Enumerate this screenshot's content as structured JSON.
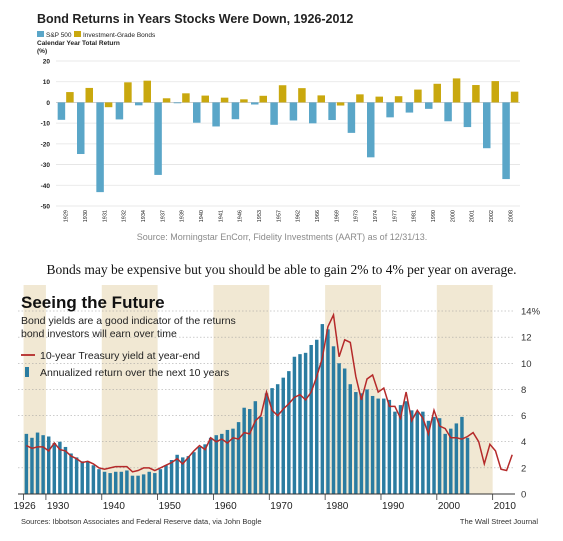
{
  "chart_data": [
    {
      "type": "bar",
      "title": "Bond Returns in Years Stocks Were Down, 1926-2012",
      "ylabel_line1": "Calendar Year Total Return",
      "ylabel_line2": "(%)",
      "source": "Source: Morningstar EnCorr, Fidelity Investments (AART) as of 12/31/13.",
      "ylim": [
        -50,
        20
      ],
      "yticks": [
        20,
        10,
        0,
        -10,
        -20,
        -30,
        -40,
        -50
      ],
      "grid": true,
      "legend_position": "top-left",
      "categories": [
        "1929",
        "1930",
        "1931",
        "1932",
        "1934",
        "1937",
        "1939",
        "1940",
        "1941",
        "1946",
        "1953",
        "1957",
        "1962",
        "1966",
        "1969",
        "1973",
        "1974",
        "1977",
        "1981",
        "1990",
        "2000",
        "2001",
        "2002",
        "2008"
      ],
      "series": [
        {
          "name": "S&P 500",
          "color": "#5aa6c8",
          "values": [
            -8.4,
            -24.9,
            -43.3,
            -8.2,
            -1.4,
            -35.0,
            -0.4,
            -9.8,
            -11.6,
            -8.1,
            -1.0,
            -10.8,
            -8.7,
            -10.1,
            -8.5,
            -14.7,
            -26.5,
            -7.2,
            -4.9,
            -3.1,
            -9.1,
            -11.9,
            -22.1,
            -37.0
          ]
        },
        {
          "name": "Investment-Grade Bonds",
          "color": "#c9a80e",
          "values": [
            5.0,
            7.0,
            -2.3,
            9.7,
            10.5,
            2.0,
            4.4,
            3.3,
            2.3,
            1.5,
            3.2,
            8.3,
            6.9,
            3.4,
            -1.5,
            3.9,
            2.8,
            3.0,
            6.2,
            9.0,
            11.6,
            8.4,
            10.3,
            5.2
          ]
        }
      ]
    },
    {
      "type": "line",
      "title": "Seeing the Future",
      "subtitle_line1": "Bond yields are a good indicator of the returns",
      "subtitle_line2": "bond investors will earn over time",
      "source": "Sources: Ibbotson Associates and Federal Reserve data, via John Bogle",
      "credit": "The Wall Street Journal",
      "ylim": [
        0,
        14
      ],
      "yticks": [
        "0",
        "2",
        "4",
        "6",
        "8",
        "10",
        "12",
        "14%"
      ],
      "xlim": [
        1925,
        2014
      ],
      "xticks": [
        "1926",
        "1930",
        "1940",
        "1950",
        "1960",
        "1970",
        "1980",
        "1990",
        "2000",
        "2010"
      ],
      "legend_position": "top-left",
      "series": [
        {
          "name": "10-year Treasury yield at year-end",
          "color": "#b52a2a",
          "x_start": 1926,
          "values": [
            3.7,
            3.5,
            3.6,
            3.6,
            3.3,
            3.9,
            3.4,
            3.3,
            2.9,
            2.7,
            2.4,
            2.5,
            2.3,
            2.0,
            1.9,
            2.0,
            2.1,
            2.1,
            2.1,
            1.7,
            1.8,
            2.0,
            2.0,
            1.8,
            2.0,
            2.2,
            2.4,
            2.7,
            2.3,
            2.8,
            3.3,
            3.7,
            3.4,
            4.3,
            4.0,
            4.2,
            3.9,
            4.3,
            4.2,
            4.7,
            4.6,
            5.6,
            6.0,
            7.8,
            6.4,
            6.0,
            6.5,
            6.9,
            7.4,
            7.6,
            7.2,
            7.8,
            9.0,
            10.4,
            12.8,
            13.7,
            10.5,
            11.8,
            11.6,
            9.0,
            7.2,
            8.8,
            9.1,
            7.8,
            8.1,
            6.7,
            6.7,
            5.8,
            7.8,
            5.6,
            6.4,
            5.8,
            4.6,
            6.4,
            5.2,
            5.0,
            4.3,
            4.3,
            4.2,
            4.4,
            4.7,
            4.0,
            2.3,
            3.8,
            3.3,
            1.9,
            1.8,
            3.0
          ]
        },
        {
          "name": "Annualized return over the next 10 years",
          "color": "#2a7ca1",
          "x_start": 1926,
          "values": [
            4.6,
            4.3,
            4.7,
            4.5,
            4.4,
            3.9,
            4.0,
            3.6,
            3.1,
            2.8,
            2.5,
            2.5,
            2.2,
            1.9,
            1.7,
            1.6,
            1.7,
            1.7,
            1.8,
            1.4,
            1.4,
            1.5,
            1.7,
            1.6,
            1.9,
            2.2,
            2.6,
            3.0,
            2.8,
            2.9,
            3.2,
            3.6,
            3.8,
            4.3,
            4.5,
            4.6,
            4.9,
            5.0,
            5.5,
            6.6,
            6.5,
            7.1,
            5.9,
            7.7,
            8.1,
            8.4,
            8.9,
            9.4,
            10.5,
            10.7,
            10.8,
            11.4,
            11.8,
            13.0,
            12.6,
            11.3,
            10.0,
            9.6,
            8.4,
            7.8,
            7.7,
            8.0,
            7.5,
            7.3,
            7.3,
            7.2,
            6.3,
            6.8,
            7.1,
            6.4,
            6.3,
            6.3,
            5.6,
            5.9,
            5.8,
            4.6,
            5.0,
            5.4,
            5.9,
            4.3
          ]
        }
      ],
      "shaded_periods": [
        [
          1926,
          1930
        ],
        [
          1940,
          1950
        ],
        [
          1960,
          1970
        ],
        [
          1980,
          1990
        ],
        [
          2000,
          2010
        ]
      ]
    }
  ],
  "caption": "Bonds may be expensive but you should be able to gain 2% to 4% per year on average."
}
